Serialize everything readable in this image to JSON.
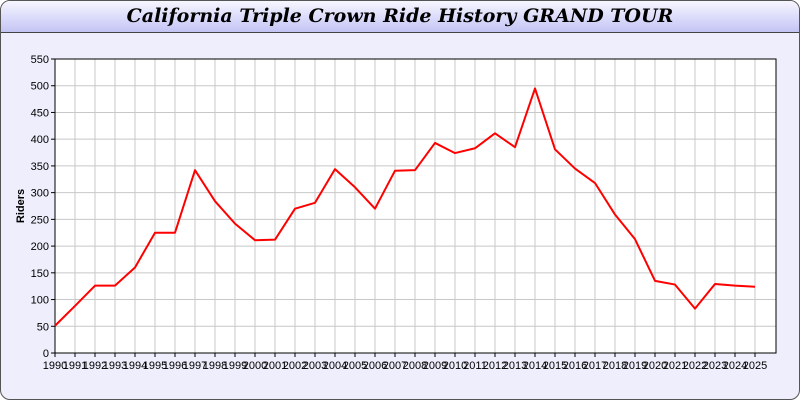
{
  "chart_data": {
    "type": "line",
    "title": "California Triple Crown Ride History GRAND TOUR",
    "xlabel": "",
    "ylabel": "Riders",
    "ylim": [
      0,
      550
    ],
    "yticks": [
      0,
      50,
      100,
      150,
      200,
      250,
      300,
      350,
      400,
      450,
      500,
      550
    ],
    "grid": true,
    "line_color": "#ff0000",
    "x": [
      1990,
      1991,
      1992,
      1993,
      1994,
      1995,
      1996,
      1997,
      1998,
      1999,
      2000,
      2001,
      2002,
      2003,
      2004,
      2005,
      2006,
      2007,
      2008,
      2009,
      2010,
      2011,
      2012,
      2013,
      2014,
      2015,
      2016,
      2017,
      2018,
      2019,
      2020,
      2021,
      2022,
      2023,
      2024,
      2025
    ],
    "values": [
      51,
      88,
      126,
      126,
      160,
      225,
      225,
      342,
      284,
      242,
      211,
      212,
      270,
      281,
      344,
      310,
      270,
      341,
      342,
      393,
      374,
      383,
      411,
      385,
      495,
      381,
      345,
      318,
      259,
      213,
      135,
      128,
      83,
      129,
      126,
      124
    ]
  }
}
